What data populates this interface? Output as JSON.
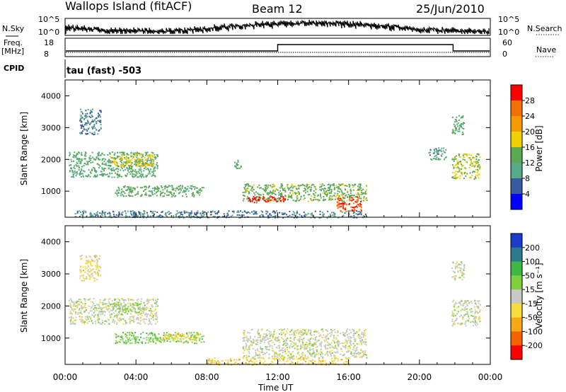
{
  "header": {
    "station": "Wallops Island (fitACF)",
    "beam": "Beam 12",
    "date": "25/Jun/2010"
  },
  "top_panels": {
    "nsky_label": "N.Sky",
    "nsky_ticks": [
      "10^5",
      "10^0"
    ],
    "nsearch_label": "N.Search",
    "nsearch_ticks": [
      "10^5",
      "10^0"
    ],
    "freq_label": "Freq.",
    "freq_unit": "[MHz]",
    "freq_ticks": [
      "18",
      "8"
    ],
    "nave_label": "Nave",
    "nave_ticks": [
      "60",
      "0"
    ],
    "cpid_label": "CPID",
    "cpid_text": "tau (fast) -503"
  },
  "colors": {
    "power": [
      "#0000ff",
      "#3a5aa0",
      "#55aa88",
      "#5ca852",
      "#f0d000",
      "#f59a00",
      "#f07000",
      "#ff0000"
    ],
    "velocity": [
      "#1a3cc8",
      "#2d7a8c",
      "#3cb843",
      "#7ed03c",
      "#c8c8c4",
      "#f6dc3c",
      "#f5aa14",
      "#f26400",
      "#ff0000"
    ]
  },
  "chart_data": [
    {
      "type": "heatmap",
      "name": "power",
      "xlabel": "",
      "ylabel": "Slant Range [km]",
      "x_ticks": [
        "00:00",
        "04:00",
        "08:00",
        "12:00",
        "16:00",
        "20:00",
        "00:00"
      ],
      "y_ticks": [
        "1000",
        "2000",
        "3000",
        "4000"
      ],
      "xlim": [
        0,
        24
      ],
      "ylim": [
        180,
        4500
      ],
      "colorbar": {
        "label": "Power [dB]",
        "ticks": [
          "4",
          "8",
          "12",
          "16",
          "20",
          "24",
          "28"
        ],
        "range": [
          0,
          32
        ]
      },
      "regions": [
        {
          "t": [
            0.2,
            5.2
          ],
          "r": [
            1450,
            2250
          ],
          "level": 12
        },
        {
          "t": [
            2.5,
            5.0
          ],
          "r": [
            1800,
            2200
          ],
          "level": 18
        },
        {
          "t": [
            2.8,
            7.8
          ],
          "r": [
            850,
            1200
          ],
          "level": 13
        },
        {
          "t": [
            10.0,
            17.0
          ],
          "r": [
            700,
            1250
          ],
          "level": 14
        },
        {
          "t": [
            10.3,
            12.5
          ],
          "r": [
            650,
            850
          ],
          "level": 29
        },
        {
          "t": [
            15.3,
            16.7
          ],
          "r": [
            350,
            850
          ],
          "level": 27
        },
        {
          "t": [
            0.8,
            2.0
          ],
          "r": [
            2800,
            3600
          ],
          "level": 8
        },
        {
          "t": [
            20.5,
            21.5
          ],
          "r": [
            2000,
            2400
          ],
          "level": 10
        },
        {
          "t": [
            21.8,
            23.4
          ],
          "r": [
            1400,
            2200
          ],
          "level": 16
        },
        {
          "t": [
            21.8,
            22.5
          ],
          "r": [
            2800,
            3400
          ],
          "level": 12
        },
        {
          "t": [
            9.5,
            9.9
          ],
          "r": [
            1700,
            2000
          ],
          "level": 12
        },
        {
          "t": [
            0.5,
            17.0
          ],
          "r": [
            180,
            400
          ],
          "level": 8
        }
      ]
    },
    {
      "type": "heatmap",
      "name": "velocity",
      "xlabel": "Time UT",
      "ylabel": "Slant Range [km]",
      "x_ticks": [
        "00:00",
        "04:00",
        "08:00",
        "12:00",
        "16:00",
        "20:00",
        "00:00"
      ],
      "y_ticks": [
        "1000",
        "2000",
        "3000",
        "4000"
      ],
      "xlim": [
        0,
        24
      ],
      "ylim": [
        180,
        4500
      ],
      "colorbar": {
        "label": "Velocity [m s⁻¹]",
        "ticks": [
          "200",
          "100",
          "50",
          "15",
          "-15",
          "-50",
          "-100",
          "-200"
        ],
        "range": [
          -250,
          250
        ]
      },
      "regions": [
        {
          "t": [
            0.2,
            5.2
          ],
          "r": [
            1450,
            2250
          ],
          "level": 0
        },
        {
          "t": [
            2.8,
            7.8
          ],
          "r": [
            850,
            1200
          ],
          "level": 60
        },
        {
          "t": [
            5.5,
            7.8
          ],
          "r": [
            950,
            1150
          ],
          "level": -70
        },
        {
          "t": [
            10.0,
            17.0
          ],
          "r": [
            400,
            1300
          ],
          "level": 0
        },
        {
          "t": [
            0.8,
            2.0
          ],
          "r": [
            2800,
            3600
          ],
          "level": -40
        },
        {
          "t": [
            21.8,
            23.4
          ],
          "r": [
            1400,
            2200
          ],
          "level": 0
        },
        {
          "t": [
            21.8,
            22.5
          ],
          "r": [
            2800,
            3400
          ],
          "level": 0
        },
        {
          "t": [
            8.0,
            16.0
          ],
          "r": [
            180,
            400
          ],
          "level": -60
        },
        {
          "t": [
            2.5,
            4.5
          ],
          "r": [
            1800,
            2100
          ],
          "level": 40
        }
      ]
    }
  ]
}
